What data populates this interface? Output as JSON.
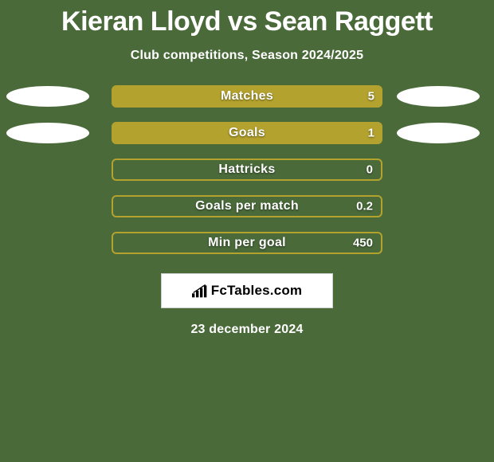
{
  "colors": {
    "page_bg": "#4a6a3a",
    "title_color": "#ffffff",
    "subtitle_color": "#ffffff",
    "fill_color": "#b3a22e",
    "outline_color": "#b3a22e",
    "ellipse_color": "#ffffff",
    "brand_border": "#cfcfcf",
    "brand_bg": "#ffffff",
    "brand_text_color": "#000000"
  },
  "title": "Kieran Lloyd vs Sean Raggett",
  "subtitle": "Club competitions, Season 2024/2025",
  "rows": [
    {
      "label": "Matches",
      "left_val": "",
      "right_val": "5",
      "fill_from": "left",
      "fill_pct": 100,
      "outlined": false,
      "show_left_ellipse": true,
      "show_right_ellipse": true
    },
    {
      "label": "Goals",
      "left_val": "",
      "right_val": "1",
      "fill_from": "left",
      "fill_pct": 100,
      "outlined": false,
      "show_left_ellipse": true,
      "show_right_ellipse": true
    },
    {
      "label": "Hattricks",
      "left_val": "",
      "right_val": "0",
      "fill_from": "left",
      "fill_pct": 0,
      "outlined": true,
      "show_left_ellipse": false,
      "show_right_ellipse": false
    },
    {
      "label": "Goals per match",
      "left_val": "",
      "right_val": "0.2",
      "fill_from": "left",
      "fill_pct": 0,
      "outlined": true,
      "show_left_ellipse": false,
      "show_right_ellipse": false
    },
    {
      "label": "Min per goal",
      "left_val": "",
      "right_val": "450",
      "fill_from": "left",
      "fill_pct": 0,
      "outlined": true,
      "show_left_ellipse": false,
      "show_right_ellipse": false
    }
  ],
  "brand": {
    "text": "FcTables.com"
  },
  "date": "23 december 2024"
}
